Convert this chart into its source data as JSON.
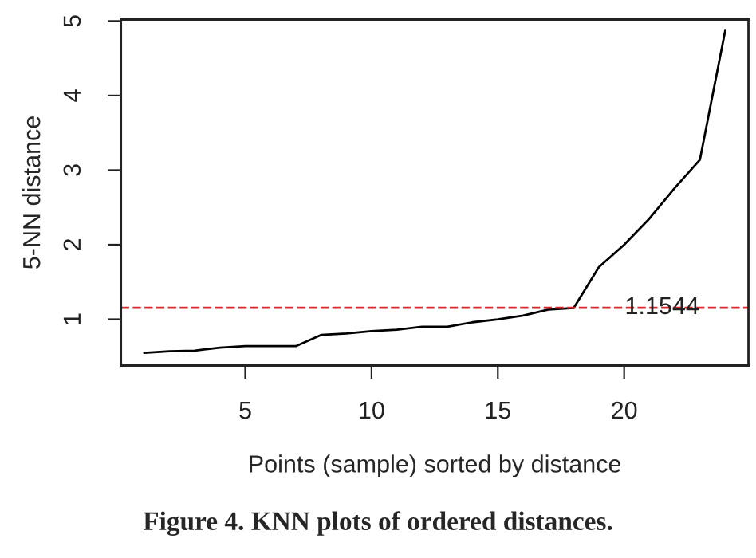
{
  "chart_data": {
    "type": "line",
    "xlabel": "Points (sample) sorted by distance",
    "ylabel": "5-NN distance",
    "x": [
      1,
      2,
      3,
      4,
      5,
      6,
      7,
      8,
      9,
      10,
      11,
      12,
      13,
      14,
      15,
      16,
      17,
      18,
      19,
      20,
      21,
      22,
      23,
      24
    ],
    "series": [
      {
        "color": "#000000",
        "values": [
          0.55,
          0.57,
          0.58,
          0.62,
          0.64,
          0.64,
          0.64,
          0.79,
          0.81,
          0.84,
          0.86,
          0.9,
          0.9,
          0.96,
          1.0,
          1.05,
          1.13,
          1.15,
          1.7,
          2.0,
          2.35,
          2.76,
          3.14,
          4.87
        ]
      }
    ],
    "xlim": [
      0.08,
      24.92
    ],
    "ylim": [
      0.38,
      5.02
    ],
    "xticks": [
      5,
      10,
      15,
      20
    ],
    "yticks": [
      1,
      2,
      3,
      4,
      5
    ],
    "ref_lines": [
      {
        "axis": "y",
        "value": 1.1544,
        "label": "1.1544",
        "color": "#e0262c",
        "line_style": "dashed"
      }
    ],
    "annotations": [
      "Figure 4. KNN plots of ordered distances."
    ],
    "grid": false,
    "legend": false,
    "marker": "none",
    "line_style": "solid"
  }
}
